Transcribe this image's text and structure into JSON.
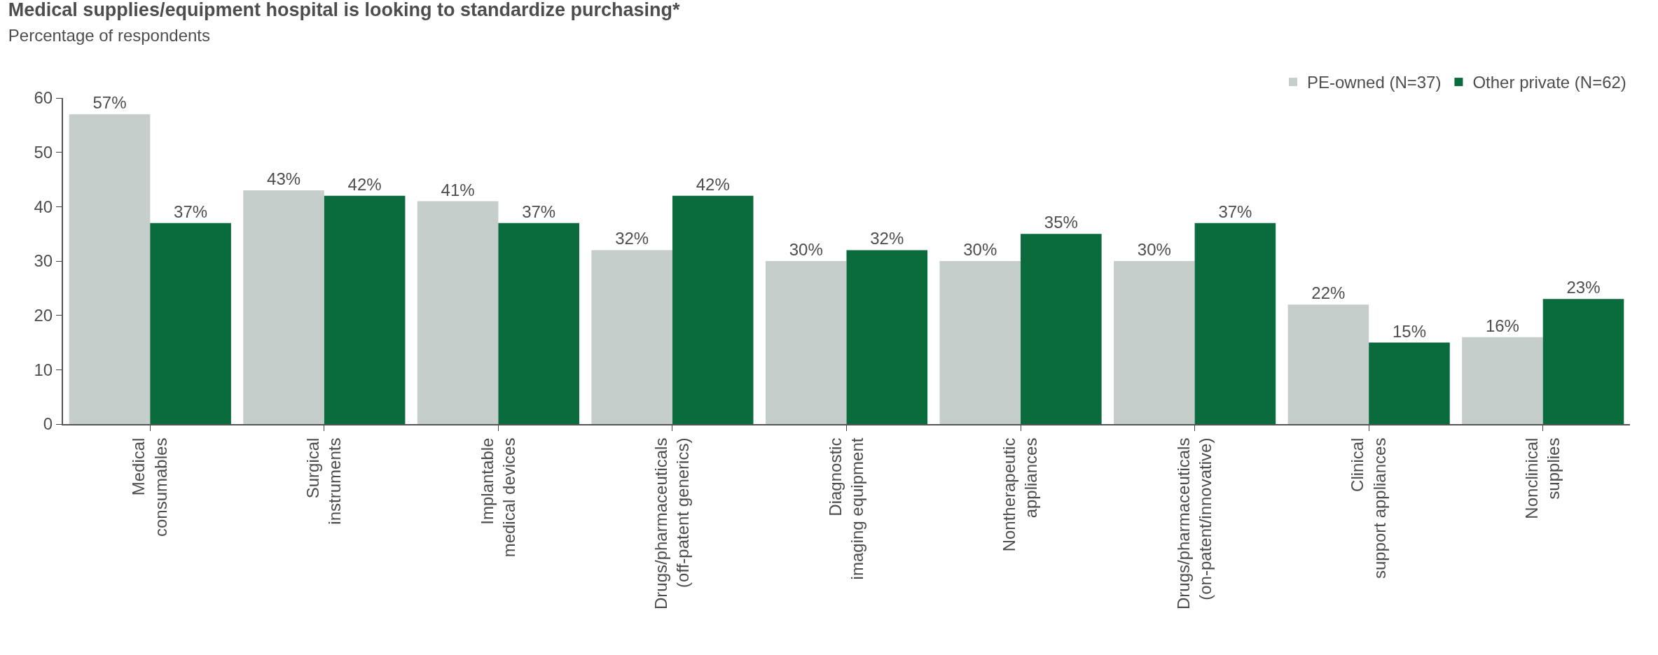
{
  "chart_data": {
    "type": "bar",
    "title": "Medical supplies/equipment hospital is looking to standardize purchasing*",
    "subtitle": "Percentage of respondents",
    "categories": [
      "Medical\nconsumables",
      "Surgical\ninstruments",
      "Implantable\nmedical devices",
      "Drugs/pharmaceuticals\n(off-patent generics)",
      "Diagnostic\nimaging equipment",
      "Nontherapeutic\nappliances",
      "Drugs/pharmaceuticals\n(on-patent/innovative)",
      "Clinical\nsupport appliances",
      "Nonclinical\nsupplies"
    ],
    "series": [
      {
        "name": "PE-owned (N=37)",
        "color": "#c5ceca",
        "values": [
          57,
          43,
          41,
          32,
          30,
          30,
          30,
          22,
          16
        ],
        "value_labels": [
          "57%",
          "43%",
          "41%",
          "32%",
          "30%",
          "30%",
          "30%",
          "22%",
          "16%"
        ]
      },
      {
        "name": "Other private (N=62)",
        "color": "#0a6b3d",
        "values": [
          37,
          42,
          37,
          42,
          32,
          35,
          37,
          15,
          23
        ],
        "value_labels": [
          "37%",
          "42%",
          "37%",
          "42%",
          "32%",
          "35%",
          "37%",
          "15%",
          "23%"
        ]
      }
    ],
    "ylim": [
      0,
      60
    ],
    "yticks": [
      0,
      10,
      20,
      30,
      40,
      50,
      60
    ],
    "grid": false,
    "legend": "top right"
  }
}
